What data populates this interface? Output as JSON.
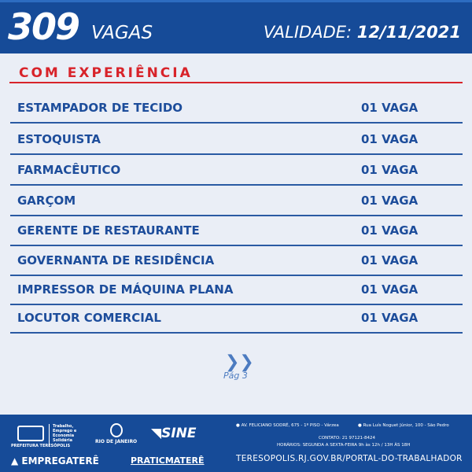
{
  "header": {
    "count": "309",
    "vagas_label": "VAGAS",
    "validade_label": "VALIDADE:",
    "validade_date": "12/11/2021"
  },
  "section_title": "COM EXPERIÊNCIA",
  "jobs": [
    {
      "name": "ESTAMPADOR DE TECIDO",
      "qty": "01 VAGA"
    },
    {
      "name": "ESTOQUISTA",
      "qty": "01 VAGA"
    },
    {
      "name": "FARMACÊUTICO",
      "qty": "01 VAGA"
    },
    {
      "name": "GARÇOM",
      "qty": "01 VAGA"
    },
    {
      "name": "GERENTE DE RESTAURANTE",
      "qty": "01 VAGA"
    },
    {
      "name": "GOVERNANTA DE RESIDÊNCIA",
      "qty": "01 VAGA"
    },
    {
      "name": "IMPRESSOR DE MÁQUINA PLANA",
      "qty": "01 VAGA"
    },
    {
      "name": "LOCUTOR COMERCIAL",
      "qty": "01 VAGA"
    }
  ],
  "pagination": {
    "next_icon": "double-chevron-right",
    "page": "Pág 3"
  },
  "footer": {
    "prefeitura": "PREFEITURA TERESÓPOLIS",
    "secretaria": "Trabalho, Emprego e Economia Solidária",
    "governo": "RIO DE JANEIRO",
    "sine": "SINE",
    "empregatere": "EMPREGATERÊ",
    "praticatere": "PRATICMATERÊ",
    "address1": "AV. FELICIANO SODRÉ, 675 - 1º PISO - Várzea",
    "address2": "Rua Luís Noguet Júnior, 100 - São Pedro",
    "contato": "CONTATO: 21 97121-8424",
    "horarios": "HORÁRIOS: SEGUNDA A SEXTA-FEIRA 9h às 12h / 13H ÀS 18H",
    "url": "TERESOPOLIS.RJ.GOV.BR/PORTAL-DO-TRABALHADOR"
  },
  "colors": {
    "primary": "#164b98",
    "accent": "#d8232a",
    "background": "#eaeef6"
  }
}
